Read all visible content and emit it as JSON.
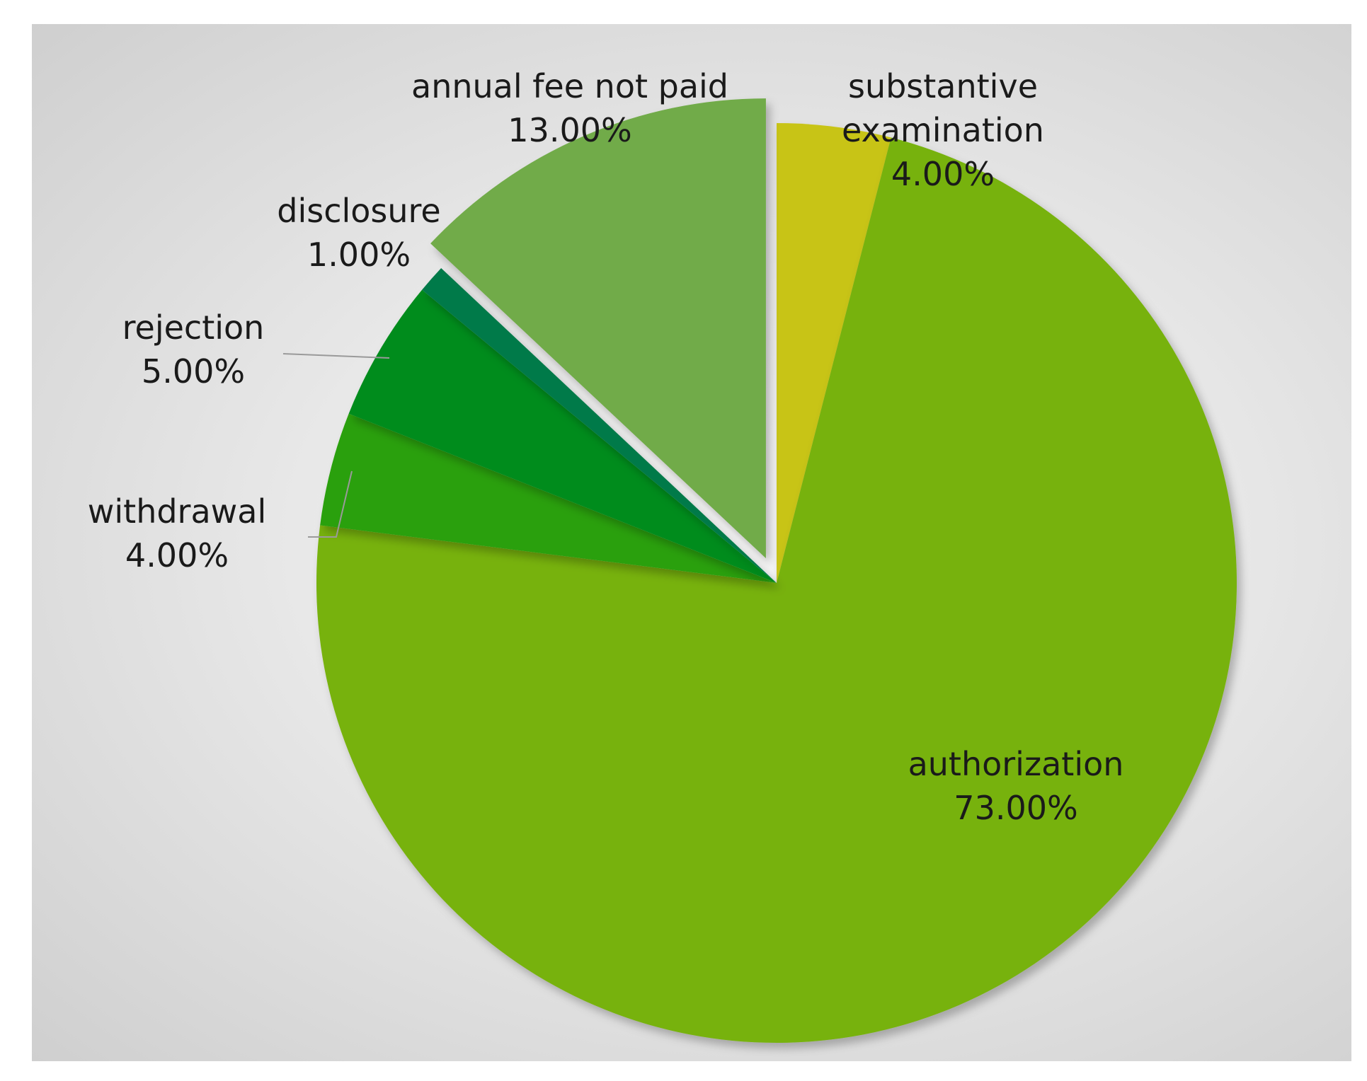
{
  "chart_data": {
    "type": "pie",
    "title": "",
    "slices": [
      {
        "name": "substantive examination",
        "label_lines": [
          "substantive",
          "examination"
        ],
        "percent_text": "4.00%",
        "value": 4.0,
        "color": "#c8c417",
        "exploded": false
      },
      {
        "name": "authorization",
        "label_lines": [
          "authorization"
        ],
        "percent_text": "73.00%",
        "value": 73.0,
        "color": "#77b20c",
        "exploded": false
      },
      {
        "name": "withdrawal",
        "label_lines": [
          "withdrawal"
        ],
        "percent_text": "4.00%",
        "value": 4.0,
        "color": "#2aa00a",
        "exploded": false,
        "leader_line": true
      },
      {
        "name": "rejection",
        "label_lines": [
          "rejection"
        ],
        "percent_text": "5.00%",
        "value": 5.0,
        "color": "#058c1e",
        "exploded": false,
        "leader_line": true
      },
      {
        "name": "disclosure",
        "label_lines": [
          "disclosure"
        ],
        "percent_text": "1.00%",
        "value": 1.0,
        "color": "#037a48",
        "exploded": false
      },
      {
        "name": "annual fee not paid",
        "label_lines": [
          "annual fee not paid"
        ],
        "percent_text": "13.00%",
        "value": 13.0,
        "color": "#71ab48",
        "exploded": true
      }
    ],
    "start_angle": "top (12 o'clock)",
    "direction": "clockwise",
    "legend": "none (data labels on slices)",
    "background": "gray radial gradient"
  }
}
